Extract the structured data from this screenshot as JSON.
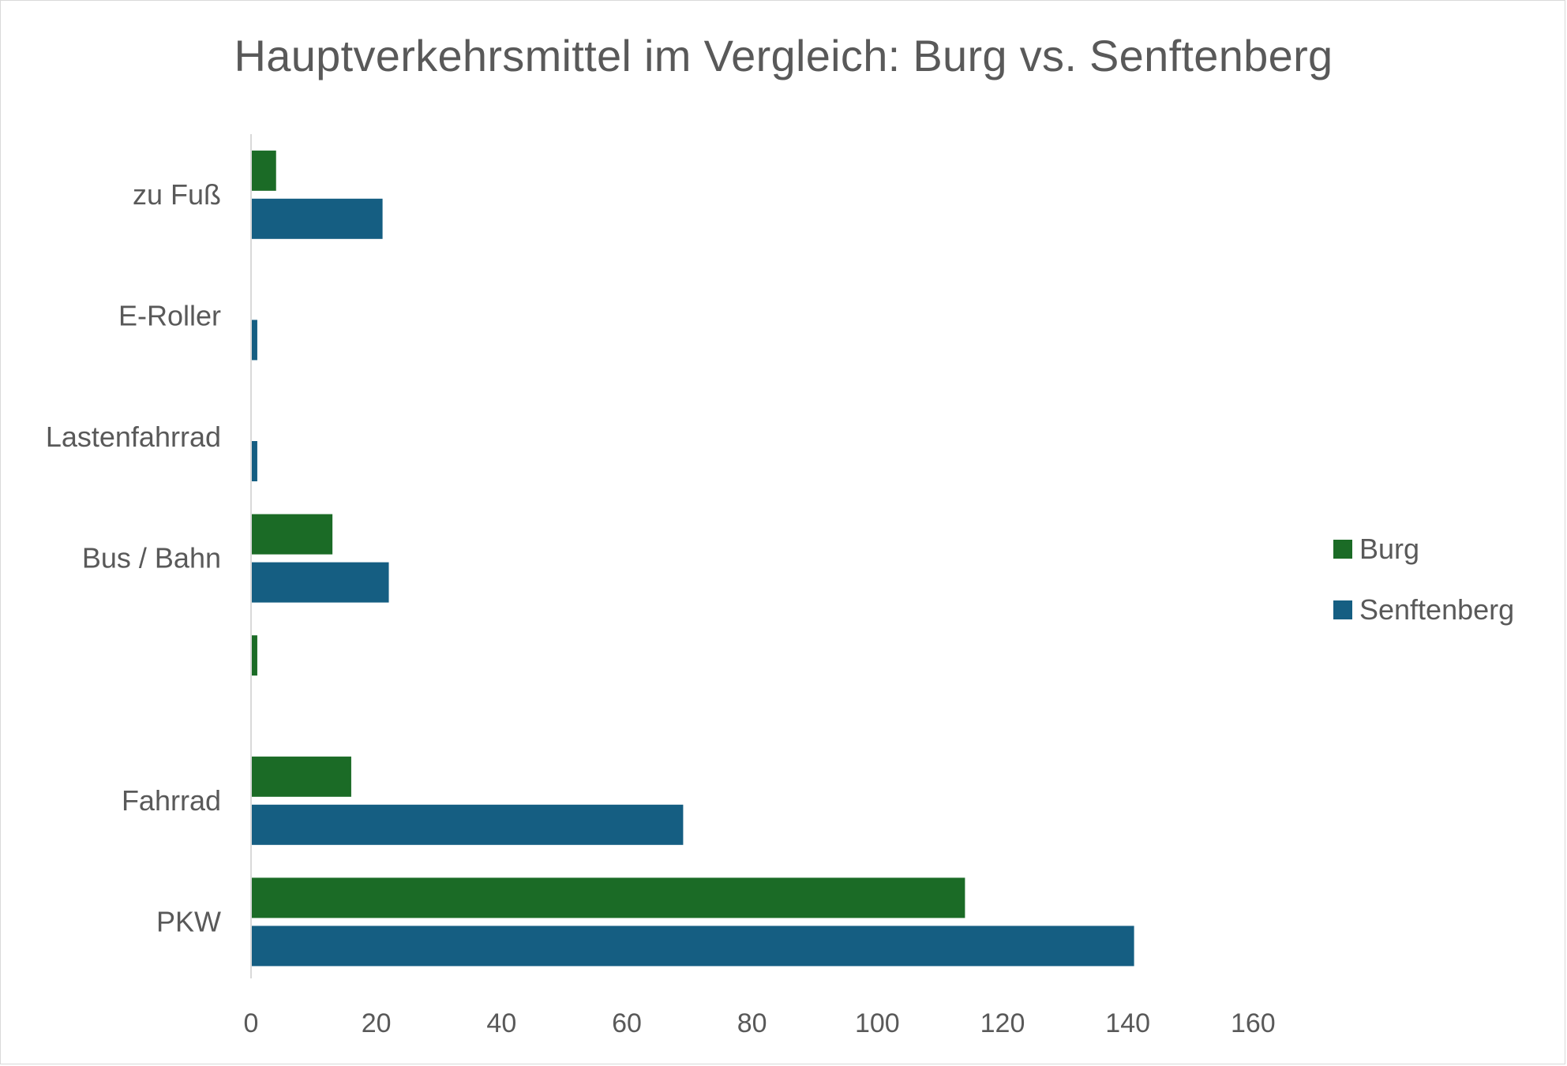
{
  "chart_data": {
    "type": "bar",
    "orientation": "horizontal",
    "title": "Hauptverkehrsmittel im Vergleich: Burg vs. Senftenberg",
    "categories": [
      "zu Fuß",
      "E-Roller",
      "Lastenfahrrad",
      "Bus / Bahn",
      "",
      "Fahrrad",
      "PKW"
    ],
    "series": [
      {
        "name": "Burg",
        "color": "#1b6b26",
        "values": [
          4,
          0,
          0,
          13,
          1,
          16,
          114
        ]
      },
      {
        "name": "Senftenberg",
        "color": "#155e82",
        "values": [
          21,
          1,
          1,
          22,
          0,
          69,
          141
        ]
      }
    ],
    "xlim": [
      0,
      160
    ],
    "xticks": [
      0,
      20,
      40,
      60,
      80,
      100,
      120,
      140,
      160
    ],
    "grid": false,
    "legend_position": "right"
  }
}
